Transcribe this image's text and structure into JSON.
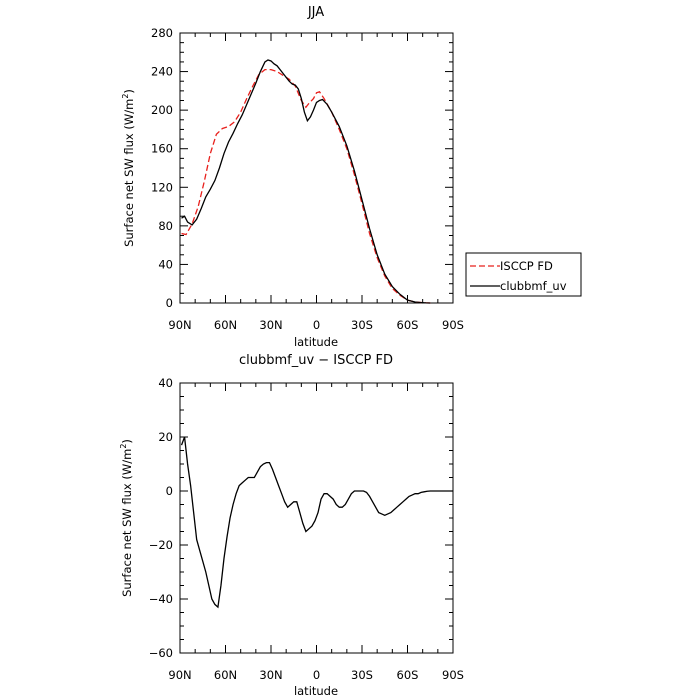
{
  "chart_data": [
    {
      "type": "line",
      "title": "JJA",
      "xlabel": "latitude",
      "ylabel_main": "Surface net SW flux (W/m",
      "ylabel_sup": "2",
      "ylabel_end": ")",
      "xlim": [
        90,
        -90
      ],
      "ylim": [
        0,
        280
      ],
      "xticks": [
        90,
        60,
        30,
        0,
        -30,
        -60,
        -90
      ],
      "xtick_labels": [
        "90N",
        "60N",
        "30N",
        "0",
        "30S",
        "60S",
        "90S"
      ],
      "yticks": [
        0,
        40,
        80,
        120,
        160,
        200,
        240,
        280
      ],
      "ytick_labels": [
        "0",
        "40",
        "80",
        "120",
        "160",
        "200",
        "240",
        "280"
      ],
      "legend_position": "right",
      "series": [
        {
          "name": "ISCCP FD",
          "color": "#e8201c",
          "dash": "dashed",
          "x": [
            89,
            86,
            82,
            78,
            74,
            70,
            66,
            62,
            58,
            54,
            50,
            46,
            42,
            38,
            34,
            30,
            26,
            22,
            18,
            14,
            10,
            7,
            5,
            2,
            0,
            -2,
            -5,
            -10,
            -15,
            -20,
            -25,
            -30,
            -35,
            -40,
            -45,
            -50,
            -55,
            -60,
            -65,
            -70,
            -72,
            -75
          ],
          "y": [
            72,
            71,
            82,
            100,
            126,
            155,
            175,
            181,
            183,
            188,
            198,
            212,
            225,
            237,
            242,
            242,
            240,
            236,
            232,
            225,
            210,
            203,
            207,
            212,
            218,
            219,
            212,
            198,
            180,
            160,
            133,
            103,
            72,
            47,
            28,
            15,
            8,
            3,
            1,
            0.4,
            0.2,
            0
          ]
        },
        {
          "name": "clubbmf_uv",
          "color": "#000000",
          "dash": "solid",
          "x": [
            89,
            87,
            85,
            82,
            79,
            76,
            73,
            70,
            67,
            64,
            61,
            58,
            55,
            52,
            49,
            46,
            43,
            40,
            37,
            34,
            32,
            30,
            28,
            26,
            24,
            22,
            20,
            18,
            16,
            14,
            12,
            10,
            8,
            6,
            4,
            2,
            0,
            -2,
            -4,
            -7,
            -10,
            -15,
            -20,
            -25,
            -30,
            -35,
            -40,
            -45,
            -50,
            -55,
            -60,
            -65,
            -70,
            -72,
            -75
          ],
          "y": [
            88,
            90,
            84,
            81,
            87,
            98,
            110,
            118,
            127,
            140,
            155,
            167,
            176,
            186,
            195,
            206,
            217,
            228,
            240,
            250,
            252,
            251,
            248,
            246,
            242,
            238,
            234,
            230,
            227,
            226,
            222,
            212,
            198,
            189,
            193,
            200,
            208,
            210,
            211,
            206,
            198,
            183,
            163,
            137,
            107,
            77,
            50,
            30,
            17,
            9,
            3,
            1,
            0.3,
            0.1,
            0
          ]
        }
      ]
    },
    {
      "type": "line",
      "title": "clubbmf_uv − ISCCP FD",
      "xlabel": "latitude",
      "ylabel_main": "Surface net SW flux (W/m",
      "ylabel_sup": "2",
      "ylabel_end": ")",
      "xlim": [
        90,
        -90
      ],
      "ylim": [
        -60,
        40
      ],
      "xticks": [
        90,
        60,
        30,
        0,
        -30,
        -60,
        -90
      ],
      "xtick_labels": [
        "90N",
        "60N",
        "30N",
        "0",
        "30S",
        "60S",
        "90S"
      ],
      "yticks": [
        -60,
        -40,
        -20,
        0,
        20,
        40
      ],
      "ytick_labels": [
        "−60",
        "−40",
        "−20",
        "0",
        "20",
        "40"
      ],
      "series": [
        {
          "name": "clubbmf_uv − ISCCP FD",
          "color": "#000000",
          "dash": "solid",
          "x": [
            89,
            87,
            85,
            83,
            81,
            79,
            77,
            75,
            73,
            71,
            69,
            67,
            65,
            63,
            61,
            59,
            57,
            55,
            53,
            51,
            49,
            47,
            45,
            43,
            41,
            39,
            37,
            35,
            33,
            31,
            29,
            27,
            25,
            23,
            21,
            19,
            17,
            15,
            13,
            11,
            9,
            7,
            5,
            3,
            1,
            -1,
            -3,
            -5,
            -7,
            -9,
            -11,
            -13,
            -15,
            -17,
            -19,
            -21,
            -23,
            -25,
            -27,
            -29,
            -31,
            -33,
            -35,
            -37,
            -39,
            -41,
            -43,
            -45,
            -47,
            -49,
            -51,
            -53,
            -55,
            -57,
            -59,
            -61,
            -63,
            -65,
            -67,
            -69,
            -71,
            -73,
            -75,
            -80,
            -85,
            -90
          ],
          "y": [
            17,
            20,
            10,
            2,
            -8,
            -18,
            -22,
            -26,
            -30,
            -35,
            -40,
            -42,
            -43,
            -35,
            -25,
            -17,
            -10,
            -5,
            -1,
            2,
            3,
            4,
            5,
            5,
            5,
            7,
            9,
            10,
            10.5,
            10.5,
            8,
            5,
            2,
            -1,
            -4,
            -6,
            -5,
            -4,
            -4,
            -8,
            -12,
            -15,
            -14,
            -13,
            -11,
            -8,
            -3,
            -1,
            -1,
            -2,
            -3,
            -5,
            -6,
            -6,
            -5,
            -3,
            -1,
            0,
            0,
            0,
            0,
            -0.5,
            -2,
            -4,
            -6,
            -8,
            -8.5,
            -9,
            -8.5,
            -8,
            -7,
            -6,
            -5,
            -4,
            -3,
            -2,
            -1.5,
            -1,
            -1,
            -0.5,
            -0.3,
            -0.1,
            0,
            0,
            0,
            0
          ]
        }
      ]
    }
  ]
}
